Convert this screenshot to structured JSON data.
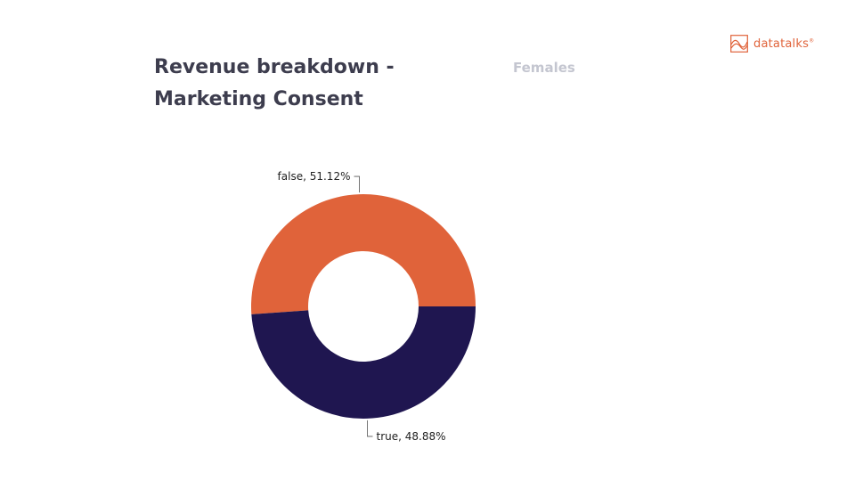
{
  "header": {
    "title": "Revenue breakdown - Marketing Consent",
    "subtitle": "Females"
  },
  "logo": {
    "text": "datatalks",
    "mark_icon": "wave-chart-icon",
    "color": "#e0633a"
  },
  "chart_data": {
    "type": "pie",
    "title": "Revenue breakdown - Marketing Consent",
    "subtitle": "Females",
    "donut": true,
    "slices": [
      {
        "label": "false",
        "value": 51.12,
        "display": "false, 51.12%",
        "color": "#e0633a"
      },
      {
        "label": "true",
        "value": 48.88,
        "display": "true, 48.88%",
        "color": "#1f1650"
      }
    ]
  }
}
